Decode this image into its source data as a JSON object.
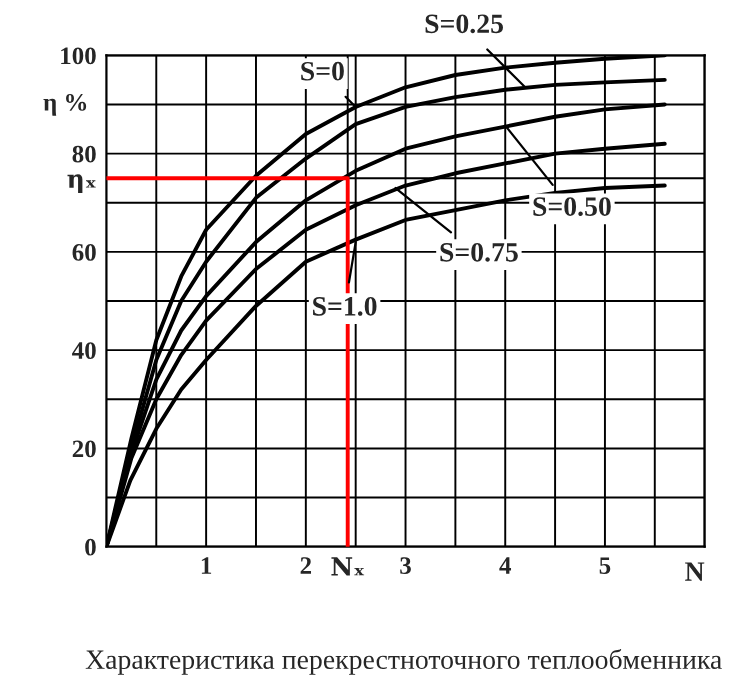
{
  "chart_data": {
    "type": "line",
    "annotations": [
      {
        "text": "S=0",
        "x": 2.5,
        "y": 89.5
      },
      {
        "text": "S=0.25",
        "x": 4.2,
        "y": 93.5
      },
      {
        "text": "S=0.50",
        "x": 4.0,
        "y": 85.7
      },
      {
        "text": "S=0.75",
        "x": 2.9,
        "y": 73
      },
      {
        "text": "S=1.0",
        "x": 2.5,
        "y": 62
      },
      "Характеристика перекрестноточного теплообменника"
    ],
    "xlabel": "N",
    "ylabel": "η %",
    "xlim": [
      0,
      6
    ],
    "ylim": [
      0,
      100
    ],
    "xticks": [
      {
        "value": 0.5,
        "label": null
      },
      1,
      {
        "value": 1.5,
        "label": null
      },
      2,
      {
        "value": 2.42,
        "label": "Nₓ"
      },
      {
        "value": 2.5,
        "label": null
      },
      3,
      {
        "value": 3.5,
        "label": null
      },
      4,
      {
        "value": 4.5,
        "label": null
      },
      5,
      {
        "value": 5.5,
        "label": null
      },
      {
        "value": 6,
        "label": null
      }
    ],
    "yticks": [
      0,
      {
        "value": 10,
        "label": null
      },
      20,
      {
        "value": 30,
        "label": null
      },
      40,
      {
        "value": 50,
        "label": null
      },
      60,
      {
        "value": 70,
        "label": null
      },
      {
        "value": 75,
        "label": "ηₓ"
      },
      80,
      {
        "value": 90,
        "label": null
      },
      100
    ],
    "grid": true,
    "legend": false,
    "series": [
      {
        "color": "#000000",
        "x": [
          0,
          0.25,
          0.5,
          0.75,
          1,
          1.5,
          2,
          2.5,
          3,
          3.5,
          4,
          4.5,
          5,
          5.6
        ],
        "values": [
          0,
          22,
          42,
          55,
          64.5,
          75.5,
          84,
          89.5,
          93.5,
          96,
          97.5,
          98.5,
          99.3,
          100
        ]
      },
      {
        "color": "#000000",
        "x": [
          0,
          0.25,
          0.5,
          0.75,
          1,
          1.5,
          2,
          2.5,
          3,
          3.5,
          4,
          4.5,
          5,
          5.6
        ],
        "values": [
          0,
          20,
          38,
          50,
          58,
          71,
          79,
          86,
          89.5,
          91.5,
          93,
          94,
          94.5,
          95
        ]
      },
      {
        "color": "#000000",
        "x": [
          0,
          0.25,
          0.5,
          0.75,
          1,
          1.5,
          2,
          2.5,
          3,
          3.5,
          4,
          4.5,
          5,
          5.6
        ],
        "values": [
          0,
          19,
          34,
          44,
          51,
          62,
          70.5,
          76.5,
          81,
          83.5,
          85.5,
          87.5,
          89,
          90
        ]
      },
      {
        "color": "#000000",
        "x": [
          0,
          0.25,
          0.5,
          0.75,
          1,
          1.5,
          2,
          2.5,
          3,
          3.5,
          4,
          4.5,
          5,
          5.6
        ],
        "values": [
          0,
          18,
          30,
          39,
          46,
          56.5,
          64.5,
          69.5,
          73.5,
          76,
          78,
          80,
          81,
          82
        ]
      },
      {
        "color": "#000000",
        "x": [
          0,
          0.24,
          0.5,
          0.75,
          1,
          1.5,
          2,
          2.5,
          3,
          3.5,
          4,
          4.5,
          5,
          5.6
        ],
        "values": [
          0,
          13.5,
          24,
          32,
          38,
          49,
          58,
          62.5,
          66.5,
          68.5,
          70.5,
          72,
          73,
          73.5
        ]
      },
      {
        "color": "#ff0000",
        "x": [
          0,
          2.42,
          2.42
        ],
        "values": [
          75,
          75,
          0
        ]
      }
    ]
  }
}
